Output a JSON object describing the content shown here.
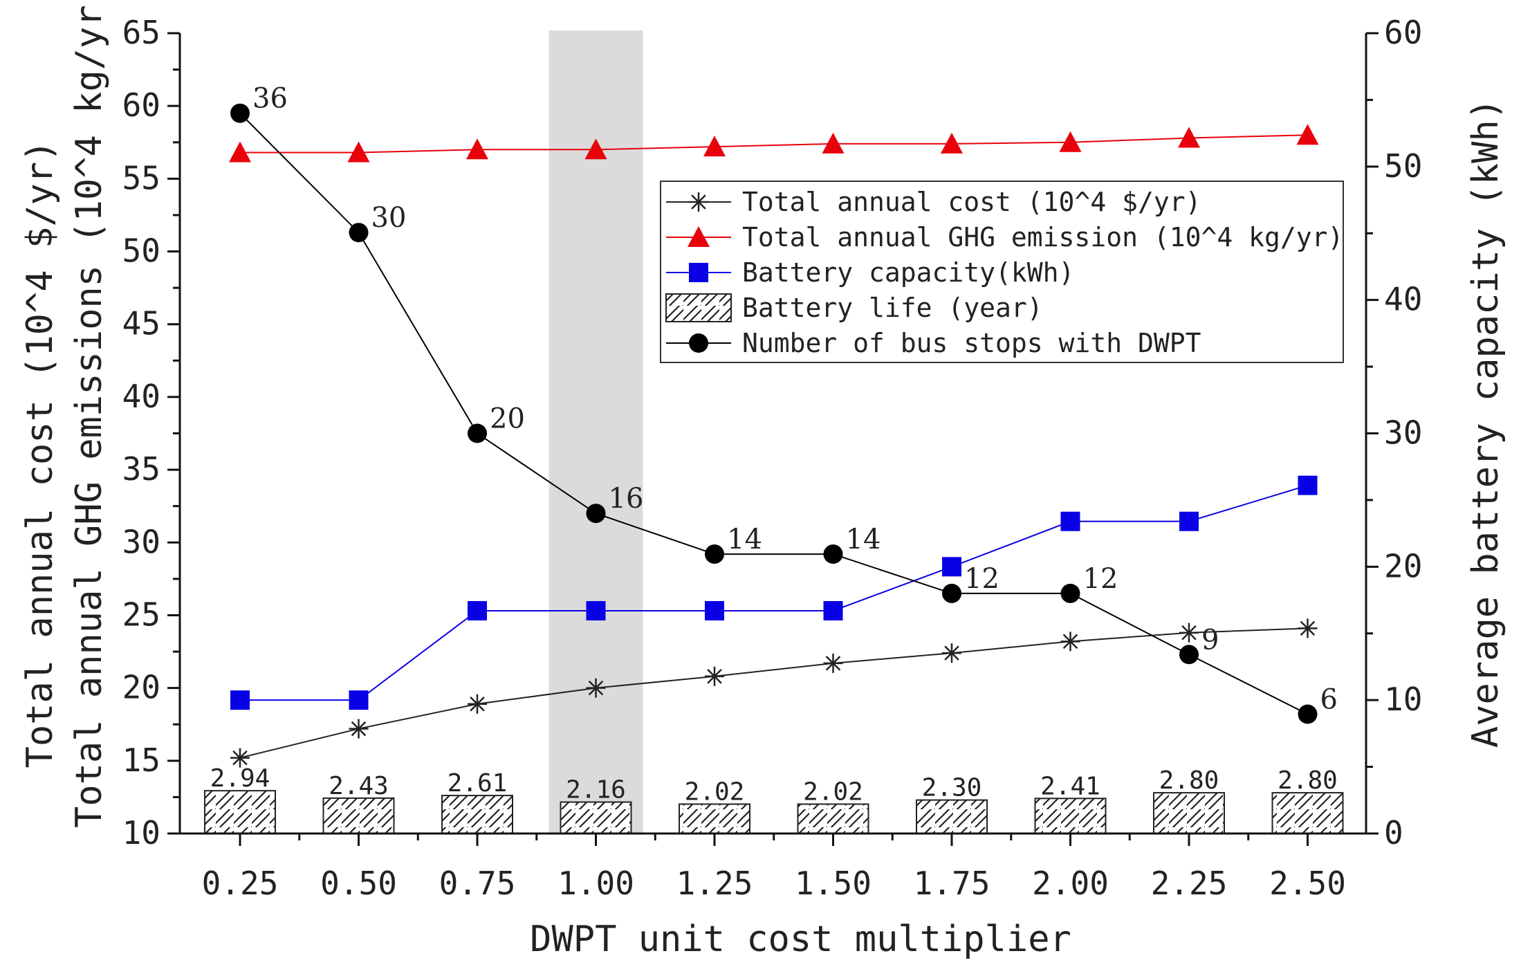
{
  "chart_data": {
    "type": "line",
    "xlabel": "DWPT unit cost multiplier",
    "ylabel_left_outer": "Total annual cost (10^4 $/yr)",
    "ylabel_left_inner": "Total annual GHG emissions (10^4 kg/yr)",
    "ylabel_right": "Average battery capacity (kWh)",
    "categories": [
      "0.25",
      "0.50",
      "0.75",
      "1.00",
      "1.25",
      "1.50",
      "1.75",
      "2.00",
      "2.25",
      "2.50"
    ],
    "highlight_category": "1.00",
    "ylim_left": [
      10,
      65
    ],
    "yticks_left": [
      "10",
      "15",
      "20",
      "25",
      "30",
      "35",
      "40",
      "45",
      "50",
      "55",
      "60",
      "65"
    ],
    "ylim_right": [
      0,
      60
    ],
    "yticks_right": [
      "0",
      "10",
      "20",
      "30",
      "40",
      "50",
      "60"
    ],
    "series": [
      {
        "name": "Total annual cost (10^4 $/yr)",
        "axis": "left",
        "marker": "asterisk",
        "color": "#222222",
        "values": [
          15.2,
          17.2,
          18.9,
          20.0,
          20.8,
          21.7,
          22.4,
          23.2,
          23.8,
          24.1
        ]
      },
      {
        "name": "Total annual GHG emission (10^4 kg/yr)",
        "axis": "left",
        "marker": "triangle",
        "color": "#e8000b",
        "values": [
          56.8,
          56.8,
          57.0,
          57.0,
          57.2,
          57.4,
          57.4,
          57.5,
          57.8,
          58.0
        ]
      },
      {
        "name": "Battery capacity(kWh)",
        "axis": "right",
        "marker": "square",
        "color": "#0a00e6",
        "values": [
          10.0,
          10.0,
          16.7,
          16.7,
          16.7,
          16.7,
          20.0,
          23.4,
          23.4,
          26.1
        ]
      },
      {
        "name": "Battery life (year)",
        "axis": "left",
        "type": "bar",
        "pattern": "hatch",
        "color": "#222222",
        "values": [
          2.94,
          2.43,
          2.61,
          2.16,
          2.02,
          2.02,
          2.3,
          2.41,
          2.8,
          2.8
        ],
        "labels": [
          "2.94",
          "2.43",
          "2.61",
          "2.16",
          "2.02",
          "2.02",
          "2.30",
          "2.41",
          "2.80",
          "2.80"
        ]
      },
      {
        "name": "Number of bus stops with DWPT",
        "axis": "left",
        "marker": "circle",
        "color": "#000000",
        "values": [
          59.5,
          51.3,
          37.5,
          32.0,
          29.2,
          29.2,
          26.5,
          26.5,
          22.3,
          18.2
        ],
        "labels": [
          "36",
          "30",
          "20",
          "16",
          "14",
          "14",
          "12",
          "12",
          "9",
          "6"
        ]
      }
    ],
    "legend": [
      {
        "label": "Total annual cost (10^4 $/yr)",
        "marker": "asterisk",
        "color": "#222222"
      },
      {
        "label": "Total annual GHG emission (10^4 kg/yr)",
        "marker": "triangle",
        "color": "#e8000b"
      },
      {
        "label": "Battery capacity(kWh)",
        "marker": "square",
        "color": "#0a00e6"
      },
      {
        "label": "Battery life (year)",
        "marker": "hatch",
        "color": "#222222"
      },
      {
        "label": "Number of bus stops with DWPT",
        "marker": "circle",
        "color": "#000000"
      }
    ],
    "legend_position": "center-right"
  }
}
